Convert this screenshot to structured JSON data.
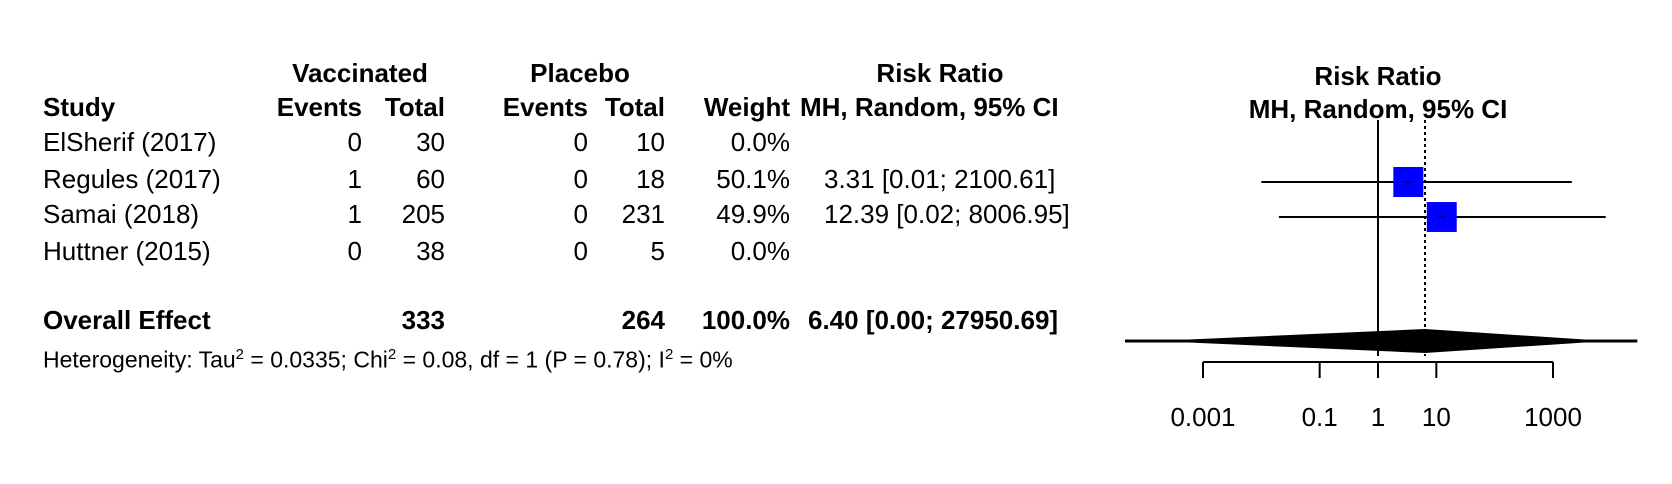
{
  "table": {
    "group_vaccinated": "Vaccinated",
    "group_placebo": "Placebo",
    "rr_heading": "Risk Ratio",
    "col_study": "Study",
    "col_events_v": "Events",
    "col_total_v": "Total",
    "col_events_p": "Events",
    "col_total_p": "Total",
    "col_weight": "Weight",
    "col_rr": "MH, Random, 95% CI",
    "rows": [
      {
        "study": "ElSherif (2017)",
        "ev_v": "0",
        "tot_v": "30",
        "ev_p": "0",
        "tot_p": "10",
        "weight": "0.0%",
        "rr": ""
      },
      {
        "study": "Regules (2017)",
        "ev_v": "1",
        "tot_v": "60",
        "ev_p": "0",
        "tot_p": "18",
        "weight": "50.1%",
        "rr": "3.31 [0.01;  2100.61]"
      },
      {
        "study": "Samai (2018)",
        "ev_v": "1",
        "tot_v": "205",
        "ev_p": "0",
        "tot_p": "231",
        "weight": "49.9%",
        "rr": "12.39 [0.02;  8006.95]"
      },
      {
        "study": "Huttner (2015)",
        "ev_v": "0",
        "tot_v": "38",
        "ev_p": "0",
        "tot_p": "5",
        "weight": "0.0%",
        "rr": ""
      }
    ],
    "overall": {
      "label": "Overall Effect",
      "tot_v": "333",
      "tot_p": "264",
      "weight": "100.0%",
      "rr": "6.40 [0.00; 27950.69]"
    },
    "heterogeneity": {
      "prefix": "Heterogeneity: Tau",
      "sup1": "2",
      "part2": " = 0.0335; Chi",
      "sup2": "2",
      "part3": " = 0.08, df = 1 (P = 0.78); I",
      "sup3": "2",
      "part4": " = 0%"
    }
  },
  "colors": {
    "box": "#0000ff",
    "line": "#000000"
  },
  "chart_data": {
    "type": "forest",
    "title": "Risk Ratio",
    "subtitle": "MH, Random, 95% CI",
    "x_scale": "log",
    "xlim": [
      0.001,
      1000
    ],
    "x_ticks": [
      0.001,
      0.1,
      1,
      10,
      1000
    ],
    "x_tick_labels": [
      "0.001",
      "0.1",
      "1",
      "10",
      "1000"
    ],
    "null_line": 1,
    "pooled_line": 6.4,
    "studies": [
      {
        "name": "Regules (2017)",
        "estimate": 3.31,
        "lower": 0.01,
        "upper": 2100.61,
        "weight": 50.1
      },
      {
        "name": "Samai (2018)",
        "estimate": 12.39,
        "lower": 0.02,
        "upper": 8006.95,
        "weight": 49.9
      }
    ],
    "overall": {
      "estimate": 6.4,
      "lower": 0.0,
      "upper": 27950.69
    }
  }
}
